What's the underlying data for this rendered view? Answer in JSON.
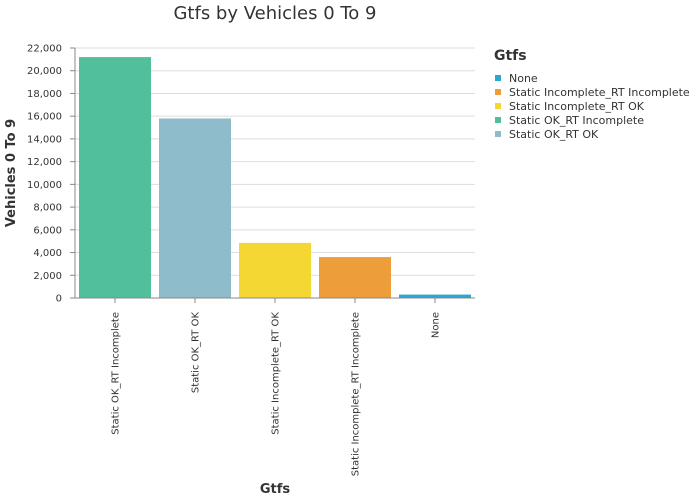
{
  "chart_data": {
    "type": "bar",
    "title": "Gtfs by Vehicles 0 To 9",
    "xlabel": "Gtfs",
    "ylabel": "Vehicles 0 To 9",
    "ylim": [
      0,
      22000
    ],
    "yticks": [
      0,
      2000,
      4000,
      6000,
      8000,
      10000,
      12000,
      14000,
      16000,
      18000,
      20000,
      22000
    ],
    "ytick_labels": [
      "0",
      "2,000",
      "4,000",
      "6,000",
      "8,000",
      "10,000",
      "12,000",
      "14,000",
      "16,000",
      "18,000",
      "20,000",
      "22,000"
    ],
    "grid": true,
    "legend_position": "right",
    "categories": [
      "Static OK_RT Incomplete",
      "Static OK_RT OK",
      "Static Incomplete_RT OK",
      "Static Incomplete_RT Incomplete",
      "None"
    ],
    "values": [
      21200,
      15800,
      4850,
      3600,
      300
    ],
    "colors": [
      "#52bf9c",
      "#8fbccb",
      "#f5d733",
      "#ed9e3a",
      "#2aa6d0"
    ],
    "legend": {
      "title": "Gtfs",
      "items": [
        {
          "label": "None",
          "color": "#2aa6d0"
        },
        {
          "label": "Static Incomplete_RT Incomplete",
          "color": "#ed9e3a"
        },
        {
          "label": "Static Incomplete_RT OK",
          "color": "#f5d733"
        },
        {
          "label": "Static OK_RT Incomplete",
          "color": "#52bf9c"
        },
        {
          "label": "Static OK_RT OK",
          "color": "#8fbccb"
        }
      ]
    }
  }
}
